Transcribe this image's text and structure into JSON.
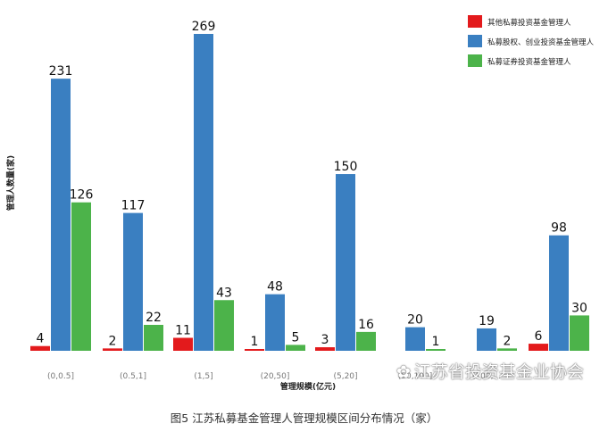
{
  "chart_data": {
    "type": "bar",
    "categories": [
      "(0,0.5]",
      "(0.5,1]",
      "(1,5]",
      "(20,50]",
      "(5,20]",
      "(50,100]",
      "(100,...",
      ""
    ],
    "series": [
      {
        "name": "其他私募投资基金管理人",
        "values": [
          4,
          2,
          11,
          1,
          3,
          null,
          null,
          6
        ],
        "color": "#e31a1c"
      },
      {
        "name": "私募股权、创业投资基金管理人",
        "values": [
          231,
          117,
          269,
          48,
          150,
          20,
          19,
          98
        ],
        "color": "#3a7fc1"
      },
      {
        "name": "私募证券投资基金管理人",
        "values": [
          126,
          22,
          43,
          5,
          16,
          1,
          2,
          30
        ],
        "color": "#4cb34a"
      }
    ],
    "xlabel": "管理规模(亿元)",
    "ylabel": "管理人数量(家)",
    "ylim": [
      0,
      269
    ],
    "legend_position": "top-right",
    "grid": false
  },
  "caption": "图5  江苏私募基金管理人管理规模区间分布情况（家）",
  "watermark": "江苏省投资基金业协会"
}
